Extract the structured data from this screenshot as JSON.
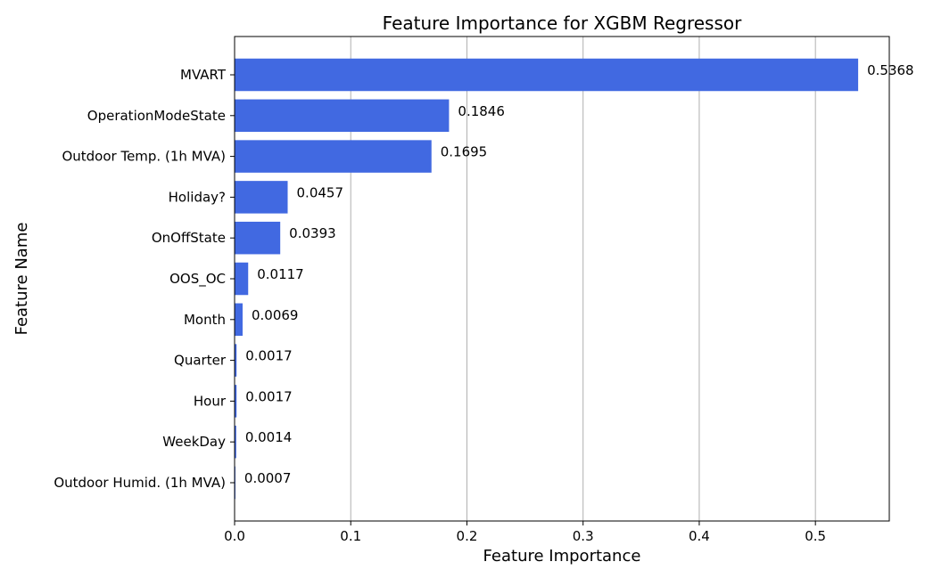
{
  "chart_data": {
    "type": "bar",
    "orientation": "horizontal",
    "title": "Feature Importance for XGBM Regressor",
    "xlabel": "Feature Importance",
    "ylabel": "Feature Name",
    "categories": [
      "MVART",
      "OperationModeState",
      "Outdoor Temp. (1h MVA)",
      "Holiday?",
      "OnOffState",
      "OOS_OC",
      "Month",
      "Quarter",
      "Hour",
      "WeekDay",
      "Outdoor Humid. (1h MVA)"
    ],
    "values": [
      0.5368,
      0.1846,
      0.1695,
      0.0457,
      0.0393,
      0.0117,
      0.0069,
      0.0017,
      0.0017,
      0.0014,
      0.0007
    ],
    "value_labels": [
      "0.5368",
      "0.1846",
      "0.1695",
      "0.0457",
      "0.0393",
      "0.0117",
      "0.0069",
      "0.0017",
      "0.0017",
      "0.0014",
      "0.0007"
    ],
    "xticks": [
      0.0,
      0.1,
      0.2,
      0.3,
      0.4,
      0.5
    ],
    "xtick_labels": [
      "0.0",
      "0.1",
      "0.2",
      "0.3",
      "0.4",
      "0.5"
    ],
    "xlim": [
      0,
      0.5636
    ],
    "grid": "vertical",
    "colors": {
      "bar": "#4169e1",
      "grid": "#b0b0b0",
      "axis": "#000000"
    }
  }
}
